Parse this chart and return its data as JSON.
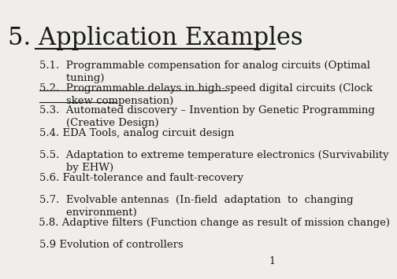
{
  "title": "5. Application Examples",
  "title_fontsize": 22,
  "body_fontsize": 9.5,
  "background_color": "#f0eeea",
  "text_color": "#1a1a1a",
  "page_number": "1",
  "items": [
    {
      "text": "5.1.  Programmable compensation for analog circuits (Optimal\n        tuning)",
      "underline": false,
      "indent": 0.045
    },
    {
      "text": "5.2.  Programmable delays in high-speed digital circuits (Clock\n        skew compensation)",
      "underline": true,
      "indent": 0.045
    },
    {
      "text": "5.3.  Automated discovery – Invention by Genetic Programming\n        (Creative Design)",
      "underline": false,
      "indent": 0.045
    },
    {
      "text": "5.4. EDA Tools, analog circuit design",
      "underline": false,
      "indent": 0.045
    },
    {
      "text": "5.5.  Adaptation to extreme temperature electronics (Survivability\n        by EHW)",
      "underline": false,
      "indent": 0.045
    },
    {
      "text": "5.6. Fault-tolerance and fault-recovery",
      "underline": false,
      "indent": 0.045
    },
    {
      "text": "5.7.  Evolvable antennas  (In-field  adaptation  to  changing\n        environment)",
      "underline": false,
      "indent": 0.045
    },
    {
      "text": " 5.8. Adaptive filters (Function change as result of mission change)",
      "underline": false,
      "indent": 0.028
    },
    {
      "text": "5.9 Evolution of controllers",
      "underline": false,
      "indent": 0.045
    }
  ]
}
